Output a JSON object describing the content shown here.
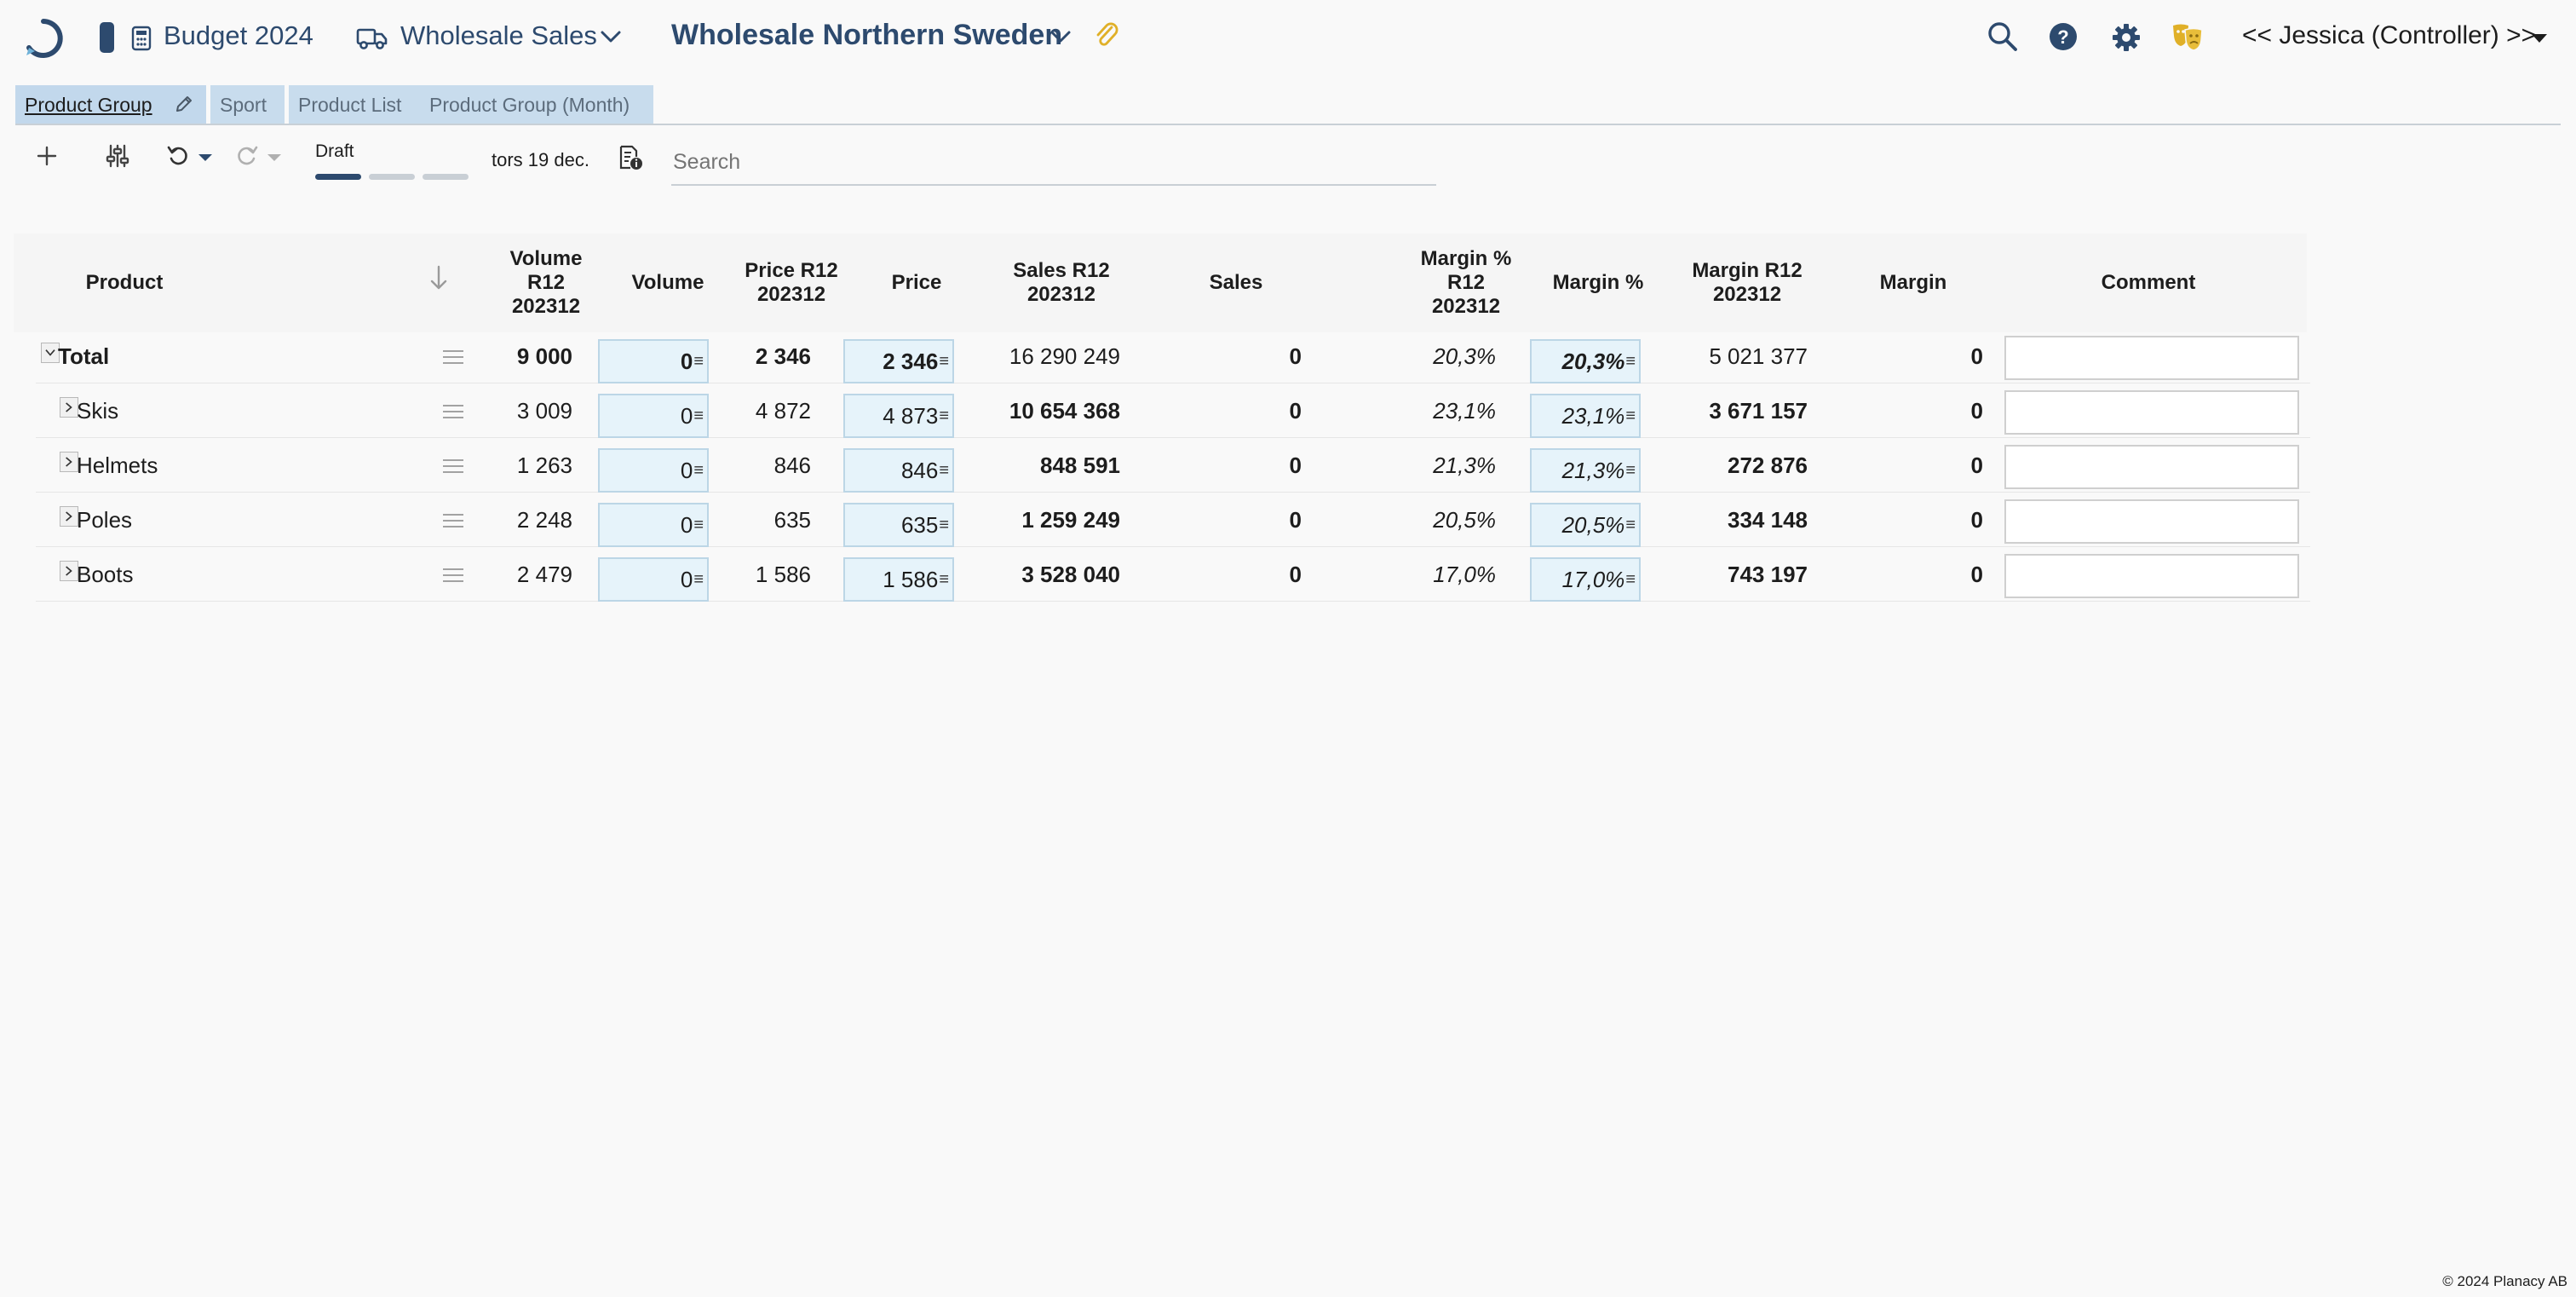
{
  "header": {
    "app_title": "Budget 2024",
    "menu_title": "Wholesale Sales",
    "entity_title": "Wholesale Northern Sweden",
    "user": "<< Jessica (Controller) >>",
    "colors": {
      "brand": "#2d4a6e",
      "accent_gold": "#e0b028",
      "input_bg": "#e6f3fa"
    }
  },
  "tabs": [
    {
      "label": "Product Group",
      "active": true
    },
    {
      "label": "Sport",
      "active": false
    },
    {
      "label": "Product List",
      "active": false
    },
    {
      "label": "Product Group (Month)",
      "active": false
    }
  ],
  "toolbar": {
    "status": "Draft",
    "status_progress": {
      "current_step": 1,
      "total_steps": 3
    },
    "date": "tors 19 dec.",
    "search_placeholder": "Search"
  },
  "table": {
    "columns": {
      "product": "Product",
      "volume_r12": [
        "Volume",
        "R12",
        "202312"
      ],
      "volume": "Volume",
      "price_r12": [
        "Price R12",
        "202312"
      ],
      "price": "Price",
      "sales_r12": [
        "Sales R12",
        "202312"
      ],
      "sales": "Sales",
      "margin_pct_r12": [
        "Margin %",
        "R12",
        "202312"
      ],
      "margin_pct": "Margin %",
      "margin_r12": [
        "Margin R12",
        "202312"
      ],
      "margin": "Margin",
      "comment": "Comment"
    },
    "rows": [
      {
        "product": "Total",
        "expanded": true,
        "volume_r12": "9 000",
        "volume": "0",
        "price_r12": "2 346",
        "price": "2 346",
        "sales_r12": "16 290 249",
        "sales": "0",
        "margin_pct_r12": "20,3%",
        "margin_pct": "20,3%",
        "margin_r12": "5 021 377",
        "margin": "0"
      },
      {
        "product": "Skis",
        "expanded": false,
        "volume_r12": "3 009",
        "volume": "0",
        "price_r12": "4 872",
        "price": "4 873",
        "sales_r12": "10 654 368",
        "sales": "0",
        "margin_pct_r12": "23,1%",
        "margin_pct": "23,1%",
        "margin_r12": "3 671 157",
        "margin": "0"
      },
      {
        "product": "Helmets",
        "expanded": false,
        "volume_r12": "1 263",
        "volume": "0",
        "price_r12": "846",
        "price": "846",
        "sales_r12": "848 591",
        "sales": "0",
        "margin_pct_r12": "21,3%",
        "margin_pct": "21,3%",
        "margin_r12": "272 876",
        "margin": "0"
      },
      {
        "product": "Poles",
        "expanded": false,
        "volume_r12": "2 248",
        "volume": "0",
        "price_r12": "635",
        "price": "635",
        "sales_r12": "1 259 249",
        "sales": "0",
        "margin_pct_r12": "20,5%",
        "margin_pct": "20,5%",
        "margin_r12": "334 148",
        "margin": "0"
      },
      {
        "product": "Boots",
        "expanded": false,
        "volume_r12": "2 479",
        "volume": "0",
        "price_r12": "1 586",
        "price": "1 586",
        "sales_r12": "3 528 040",
        "sales": "0",
        "margin_pct_r12": "17,0%",
        "margin_pct": "17,0%",
        "margin_r12": "743 197",
        "margin": "0"
      }
    ]
  },
  "footer": {
    "copyright": "© 2024 Planacy AB"
  }
}
